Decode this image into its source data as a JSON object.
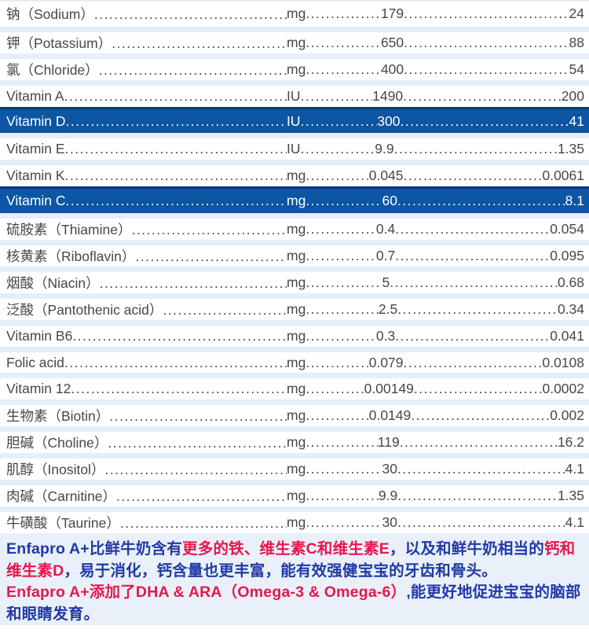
{
  "table": {
    "rows": [
      {
        "name": "钠（Sodium）",
        "unit": "mg",
        "value1": "179",
        "value2": "24",
        "highlight": false
      },
      {
        "name": "钾（Potassium）",
        "unit": "mg",
        "value1": "650",
        "value2": "88",
        "highlight": false
      },
      {
        "name": "氯（Chloride）",
        "unit": "mg",
        "value1": "400",
        "value2": "54",
        "highlight": false
      },
      {
        "name": "Vitamin A",
        "unit": "IU",
        "value1": "1490",
        "value2": "200",
        "highlight": false
      },
      {
        "name": "Vitamin D",
        "unit": "IU",
        "value1": "300",
        "value2": "41",
        "highlight": true
      },
      {
        "name": "Vitamin E",
        "unit": "IU",
        "value1": "9.9",
        "value2": "1.35",
        "highlight": false
      },
      {
        "name": "Vitamin K",
        "unit": "mg",
        "value1": "0.045",
        "value2": "0.0061",
        "highlight": false
      },
      {
        "name": "Vitamin C",
        "unit": "mg",
        "value1": "60",
        "value2": "8.1",
        "highlight": true
      },
      {
        "name": "硫胺素（Thiamine）",
        "unit": "mg",
        "value1": "0.4",
        "value2": "0.054",
        "highlight": false
      },
      {
        "name": "核黄素（Riboflavin）",
        "unit": "mg",
        "value1": "0.7",
        "value2": "0.095",
        "highlight": false
      },
      {
        "name": "烟酸（Niacin）",
        "unit": "mg",
        "value1": "5",
        "value2": "0.68",
        "highlight": false
      },
      {
        "name": "泛酸（Pantothenic acid）",
        "unit": "mg",
        "value1": "2.5",
        "value2": "0.34",
        "highlight": false
      },
      {
        "name": "Vitamin B6",
        "unit": "mg",
        "value1": "0.3",
        "value2": "0.041",
        "highlight": false
      },
      {
        "name": "Folic acid",
        "unit": "mg",
        "value1": "0.079",
        "value2": "0.0108",
        "highlight": false
      },
      {
        "name": "Vitamin 12",
        "unit": "mg",
        "value1": "0.00149",
        "value2": "0.0002",
        "highlight": false
      },
      {
        "name": "生物素（Biotin）",
        "unit": "mg",
        "value1": "0.0149",
        "value2": "0.002",
        "highlight": false
      },
      {
        "name": "胆碱（Choline）",
        "unit": "mg",
        "value1": "119",
        "value2": "16.2",
        "highlight": false
      },
      {
        "name": "肌醇（Inositol）",
        "unit": "mg",
        "value1": "30",
        "value2": "4.1",
        "highlight": false
      },
      {
        "name": "肉碱（Carnitine）",
        "unit": "mg",
        "value1": "9.9",
        "value2": "1.35",
        "highlight": false
      },
      {
        "name": "牛磺酸（Taurine）",
        "unit": "mg",
        "value1": "30",
        "value2": "4.1",
        "highlight": false
      }
    ]
  },
  "footer": {
    "para1": [
      {
        "text": "Enfapro A+比鲜牛奶含有",
        "color": "blue"
      },
      {
        "text": "更多的铁、维生素C和维生素E",
        "color": "red"
      },
      {
        "text": "，以及和鲜牛奶相当的",
        "color": "blue"
      },
      {
        "text": "钙和维生素D",
        "color": "red"
      },
      {
        "text": "，易于消化，钙含量也更丰富，能有效强健宝宝的牙齿和骨头。",
        "color": "blue"
      }
    ],
    "para2": [
      {
        "text": "Enfapro A+添加了DHA & ARA（Omega-3 & Omega-6）",
        "color": "red"
      },
      {
        "text": ",能更好地促进宝宝的脑部和眼睛发育。",
        "color": "blue"
      }
    ]
  },
  "colors": {
    "highlight_row_bg": "#0d56a3",
    "highlight_row_top_border": "#0a3c79",
    "row_separator": "#e6eef8",
    "row_text": "#474747",
    "footer_bg": "#e9f0f9",
    "footer_blue": "#2039a6",
    "footer_red": "#e6174e"
  }
}
